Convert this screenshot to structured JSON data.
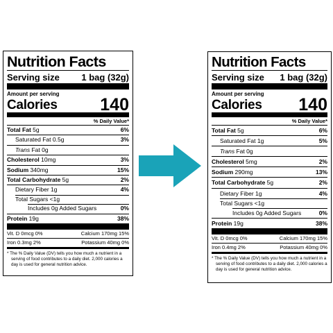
{
  "labels": [
    {
      "title": "Nutrition Facts",
      "serving_size_label": "Serving size",
      "serving_size_value": "1 bag (32g)",
      "amount_per_serving": "Amount per serving",
      "calories_label": "Calories",
      "calories_value": "140",
      "daily_value_header": "% Daily Value*",
      "nutrients": [
        {
          "name": "Total Fat",
          "amount": "5g",
          "dv": "6%"
        },
        {
          "name": "Saturated Fat",
          "amount": "0.5g",
          "dv": "3%"
        },
        {
          "name": "Trans",
          "amount": "Fat 0g",
          "dv": ""
        },
        {
          "name": "Cholesterol",
          "amount": "10mg",
          "dv": "3%"
        },
        {
          "name": "Sodium",
          "amount": "340mg",
          "dv": "15%"
        },
        {
          "name": "Total Carbohydrate",
          "amount": "5g",
          "dv": "2%"
        },
        {
          "name": "Dietary Fiber",
          "amount": "1g",
          "dv": "4%"
        },
        {
          "name": "Total Sugars",
          "amount": "<1g",
          "dv": ""
        },
        {
          "name": "Includes 0g Added Sugars",
          "amount": "",
          "dv": "0%"
        },
        {
          "name": "Protein",
          "amount": "19g",
          "dv": "38%"
        }
      ],
      "micronutrients": [
        {
          "left": "Vit. D 0mcg 0%",
          "right": "Calcium 170mg 15%"
        },
        {
          "left": "Iron 0.3mg 2%",
          "right": "Potassium 40mg 0%"
        }
      ],
      "footnote": "* The % Daily Value (DV) tells you how much a nutrient in a serving of food contributes to a daily diet. 2,000 calories a day is used for general nutrition advice."
    },
    {
      "title": "Nutrition Facts",
      "serving_size_label": "Serving size",
      "serving_size_value": "1 bag (32g)",
      "amount_per_serving": "Amount per serving",
      "calories_label": "Calories",
      "calories_value": "140",
      "daily_value_header": "% Daily Value*",
      "nutrients": [
        {
          "name": "Total Fat",
          "amount": "5g",
          "dv": "6%"
        },
        {
          "name": "Saturated Fat",
          "amount": "1g",
          "dv": "5%"
        },
        {
          "name": "Trans",
          "amount": "Fat 0g",
          "dv": ""
        },
        {
          "name": "Cholesterol",
          "amount": "5mg",
          "dv": "2%"
        },
        {
          "name": "Sodium",
          "amount": "290mg",
          "dv": "13%"
        },
        {
          "name": "Total Carbohydrate",
          "amount": "5g",
          "dv": "2%"
        },
        {
          "name": "Dietary Fiber",
          "amount": "1g",
          "dv": "4%"
        },
        {
          "name": "Total Sugars",
          "amount": "<1g",
          "dv": ""
        },
        {
          "name": "Includes 0g Added Sugars",
          "amount": "",
          "dv": "0%"
        },
        {
          "name": "Protein",
          "amount": "19g",
          "dv": "38%"
        }
      ],
      "micronutrients": [
        {
          "left": "Vit. D 0mcg 0%",
          "right": "Calcium 170mg 15%"
        },
        {
          "left": "Iron 0.4mg 2%",
          "right": "Potassium 40mg 0%"
        }
      ],
      "footnote": "* The % Daily Value (DV) tells you how much a nutrient in a serving of food contributes to a daily diet. 2,000 calories a day is used for general nutrition advice."
    }
  ],
  "arrow": {
    "icon": "arrow-right-icon",
    "color": "#1aa3b8"
  }
}
